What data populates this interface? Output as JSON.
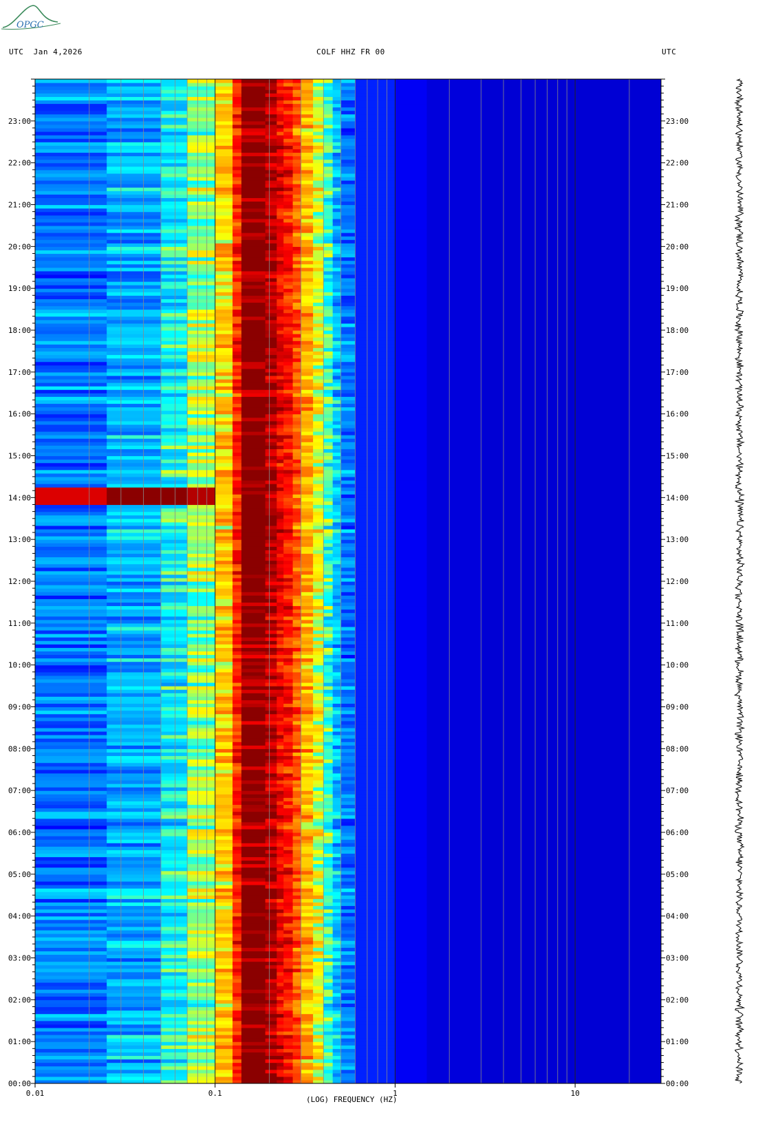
{
  "header": {
    "left": "UTC  Jan 4,2026",
    "center": "COLF HHZ FR 00",
    "right": "UTC"
  },
  "logo": {
    "text": "OPGC",
    "color": "#2e8b57"
  },
  "chart_data": {
    "type": "heatmap",
    "title": "COLF HHZ FR 00",
    "xlabel": "(LOG) FREQUENCY (HZ)",
    "ylabel": "",
    "x_scale": "log",
    "xlim": [
      0.01,
      30
    ],
    "x_ticks": [
      {
        "value": 0.01,
        "label": "0.01"
      },
      {
        "value": 0.1,
        "label": "0.1"
      },
      {
        "value": 1,
        "label": "1"
      },
      {
        "value": 10,
        "label": "10"
      }
    ],
    "ylim_hours": [
      0,
      24
    ],
    "y_ticks": [
      "00:00",
      "01:00",
      "02:00",
      "03:00",
      "04:00",
      "05:00",
      "06:00",
      "07:00",
      "08:00",
      "09:00",
      "10:00",
      "11:00",
      "12:00",
      "13:00",
      "14:00",
      "15:00",
      "16:00",
      "17:00",
      "18:00",
      "19:00",
      "20:00",
      "21:00",
      "22:00",
      "23:00"
    ],
    "freq_bins_hz": [
      0.01,
      0.025,
      0.05,
      0.07,
      0.1,
      0.125,
      0.14,
      0.19,
      0.22,
      0.24,
      0.27,
      0.3,
      0.35,
      0.4,
      0.45,
      0.5,
      0.6,
      1,
      1.5,
      3,
      30
    ],
    "band_levels": [
      0.28,
      0.34,
      0.42,
      0.52,
      0.62,
      0.82,
      1.0,
      0.95,
      0.88,
      0.84,
      0.76,
      0.66,
      0.56,
      0.46,
      0.36,
      0.28,
      0.18,
      0.13,
      0.1,
      0.09
    ],
    "event": {
      "time_hours": 14.0,
      "band_levels": [
        0.9,
        1.0,
        1.0,
        0.95,
        0.6
      ]
    },
    "colormap": [
      "#00008b",
      "#0000ff",
      "#0080ff",
      "#00ffff",
      "#ffff00",
      "#ff8000",
      "#ff0000",
      "#8b0000"
    ],
    "grid": true
  }
}
